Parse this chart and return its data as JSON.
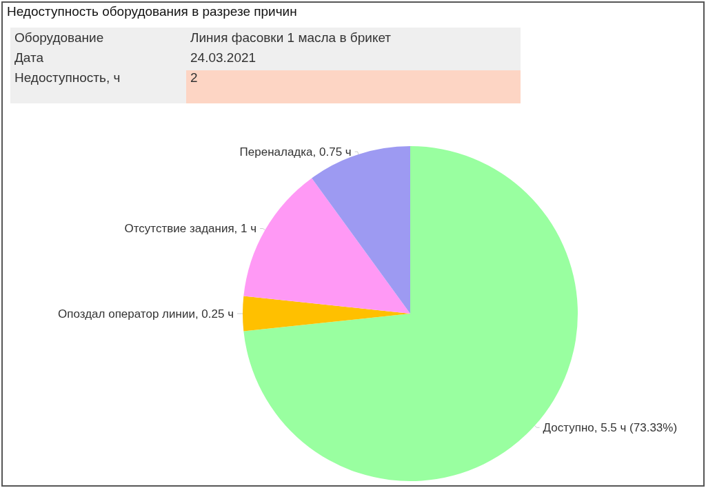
{
  "chart_data": {
    "type": "pie",
    "title": "Недоступность оборудования в разрезе причин",
    "annotations": [
      "Оборудование",
      "Линия фасовки 1 масла в брикет",
      "Дата",
      "24.03.2021",
      "Недоступность, ч",
      "2"
    ],
    "categories": [
      "Доступно",
      "Опоздал оператор линии",
      "Отсутствие задания",
      "Переналадка"
    ],
    "values": [
      5.5,
      0.25,
      1,
      0.75
    ],
    "colors": [
      "#99ffa0",
      "#ffc000",
      "#ff99f5",
      "#9d9af2"
    ],
    "value_labels": [
      "5.5 ч (73.33%)",
      "0.25 ч",
      "1 ч",
      "0.75 ч"
    ],
    "legend": false
  }
}
